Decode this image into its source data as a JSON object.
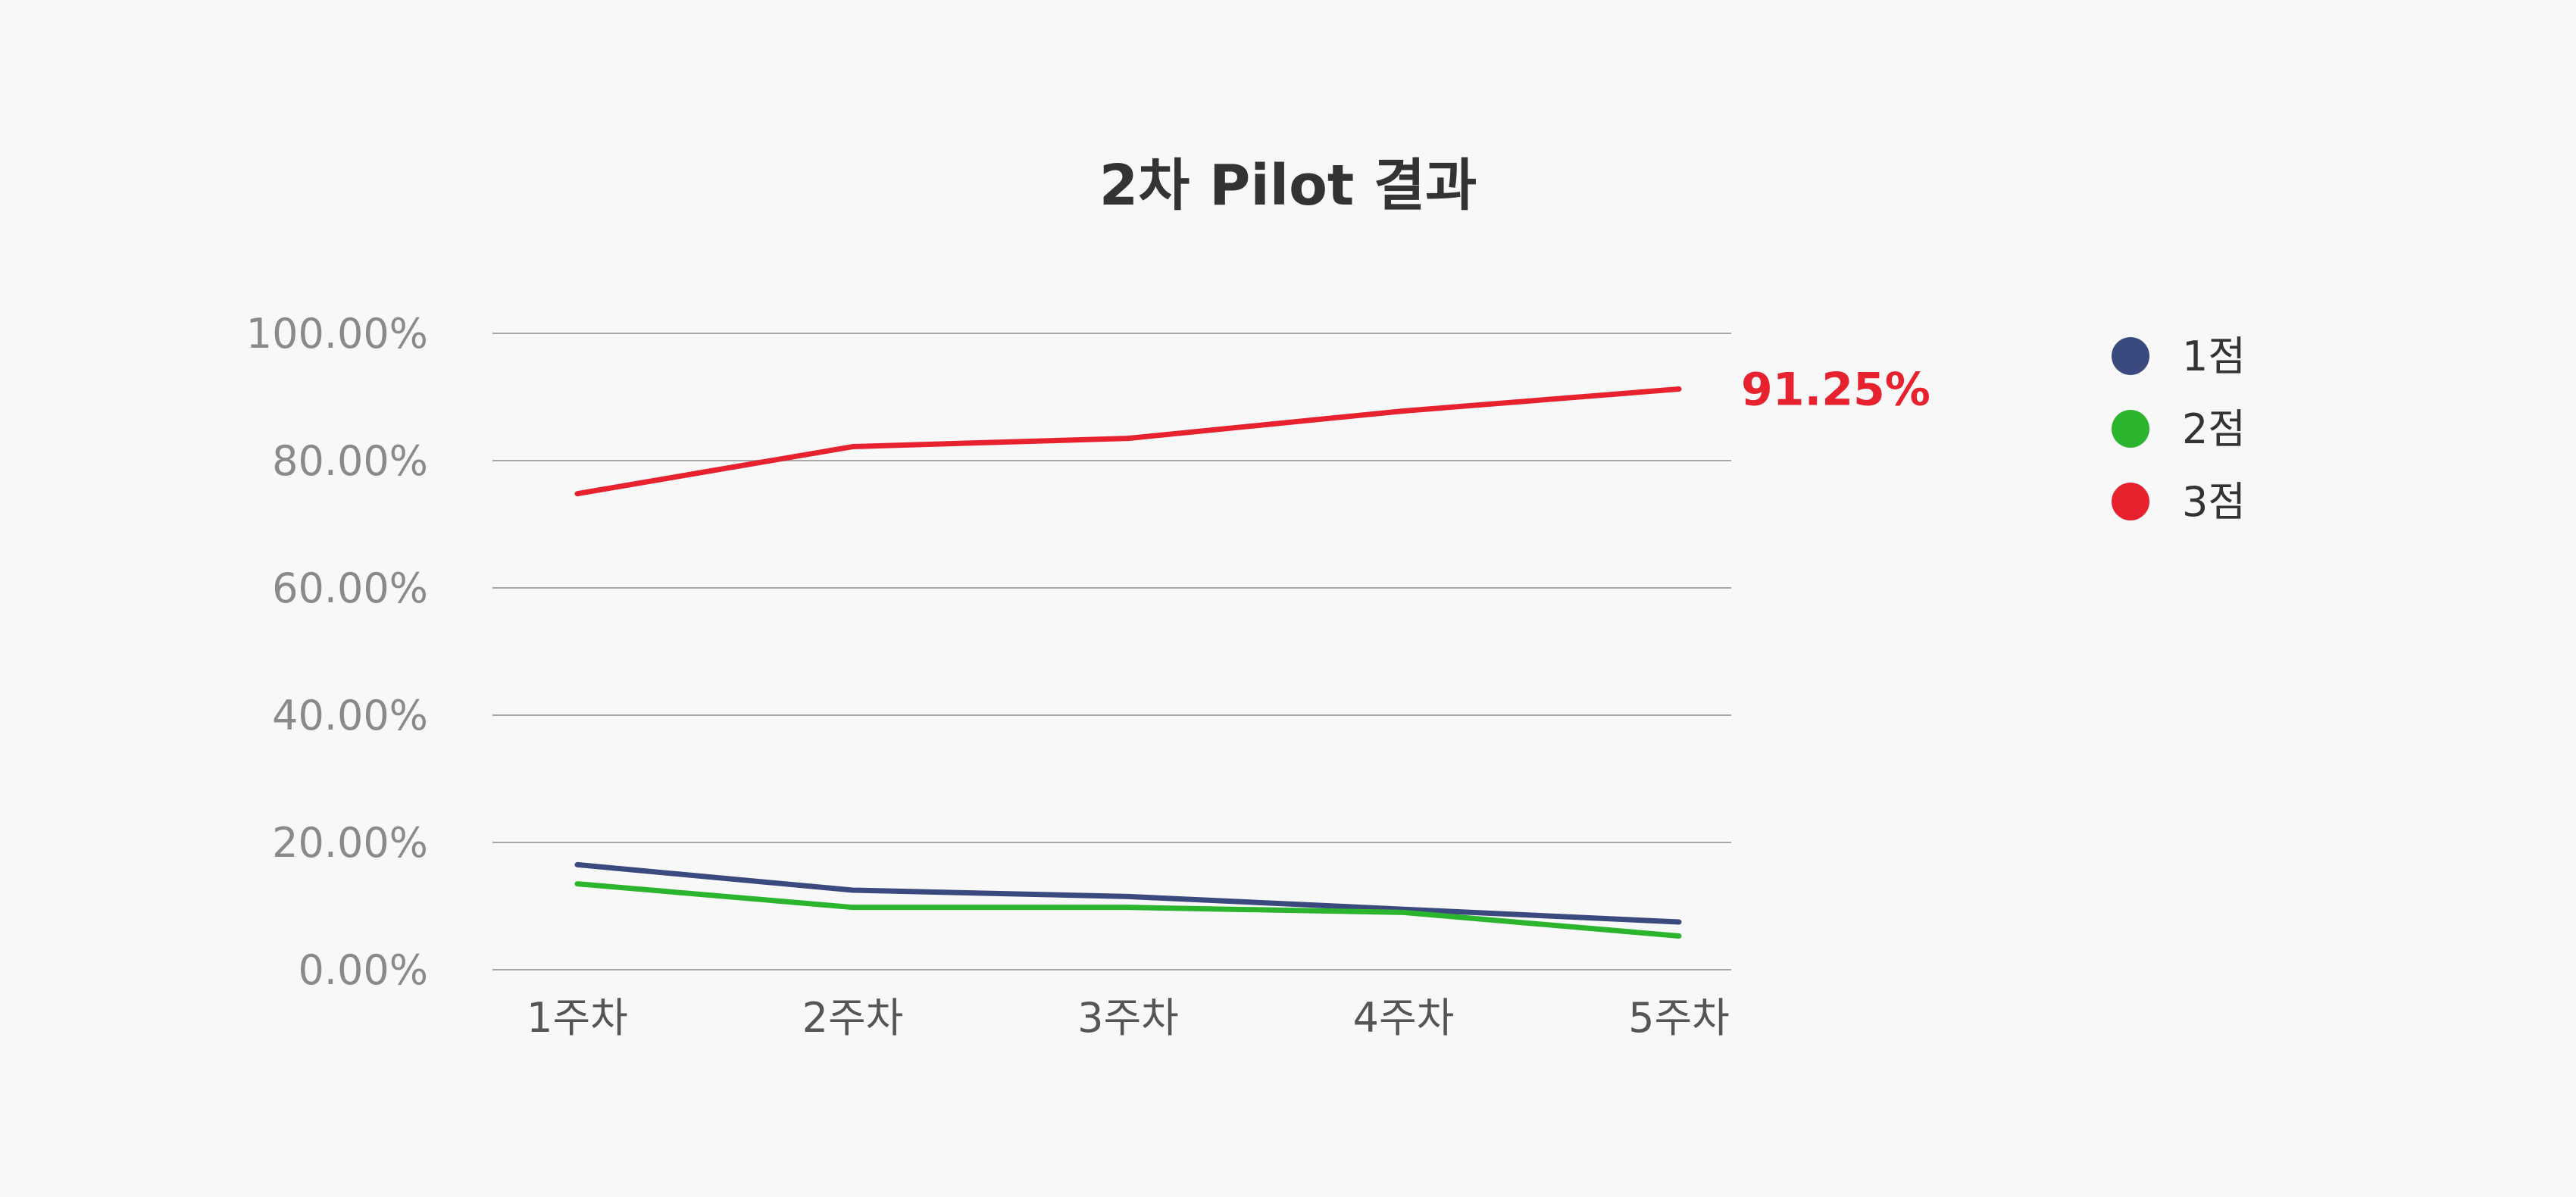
{
  "chart_data": {
    "type": "line",
    "title": "2차 Pilot 결과",
    "categories": [
      "1주차",
      "2주차",
      "3주차",
      "4주차",
      "5주차"
    ],
    "ylim": [
      0,
      100
    ],
    "y_ticks": [
      "100.00%",
      "80.00%",
      "60.00%",
      "40.00%",
      "20.00%",
      "0.00%"
    ],
    "grid": true,
    "legend_position": "right",
    "series": [
      {
        "name": "1점",
        "color": "#3b4a7e",
        "values": [
          16.5,
          12.5,
          11.5,
          9.5,
          7.5
        ]
      },
      {
        "name": "2점",
        "color": "#2bb52f",
        "values": [
          13.5,
          9.8,
          9.8,
          9.0,
          5.3
        ]
      },
      {
        "name": "3점",
        "color": "#e8212f",
        "values": [
          74.8,
          82.2,
          83.5,
          87.8,
          91.25
        ]
      }
    ],
    "annotations": [
      {
        "series": "3점",
        "point": 4,
        "text": "91.25%",
        "color": "#e8212f"
      }
    ]
  }
}
